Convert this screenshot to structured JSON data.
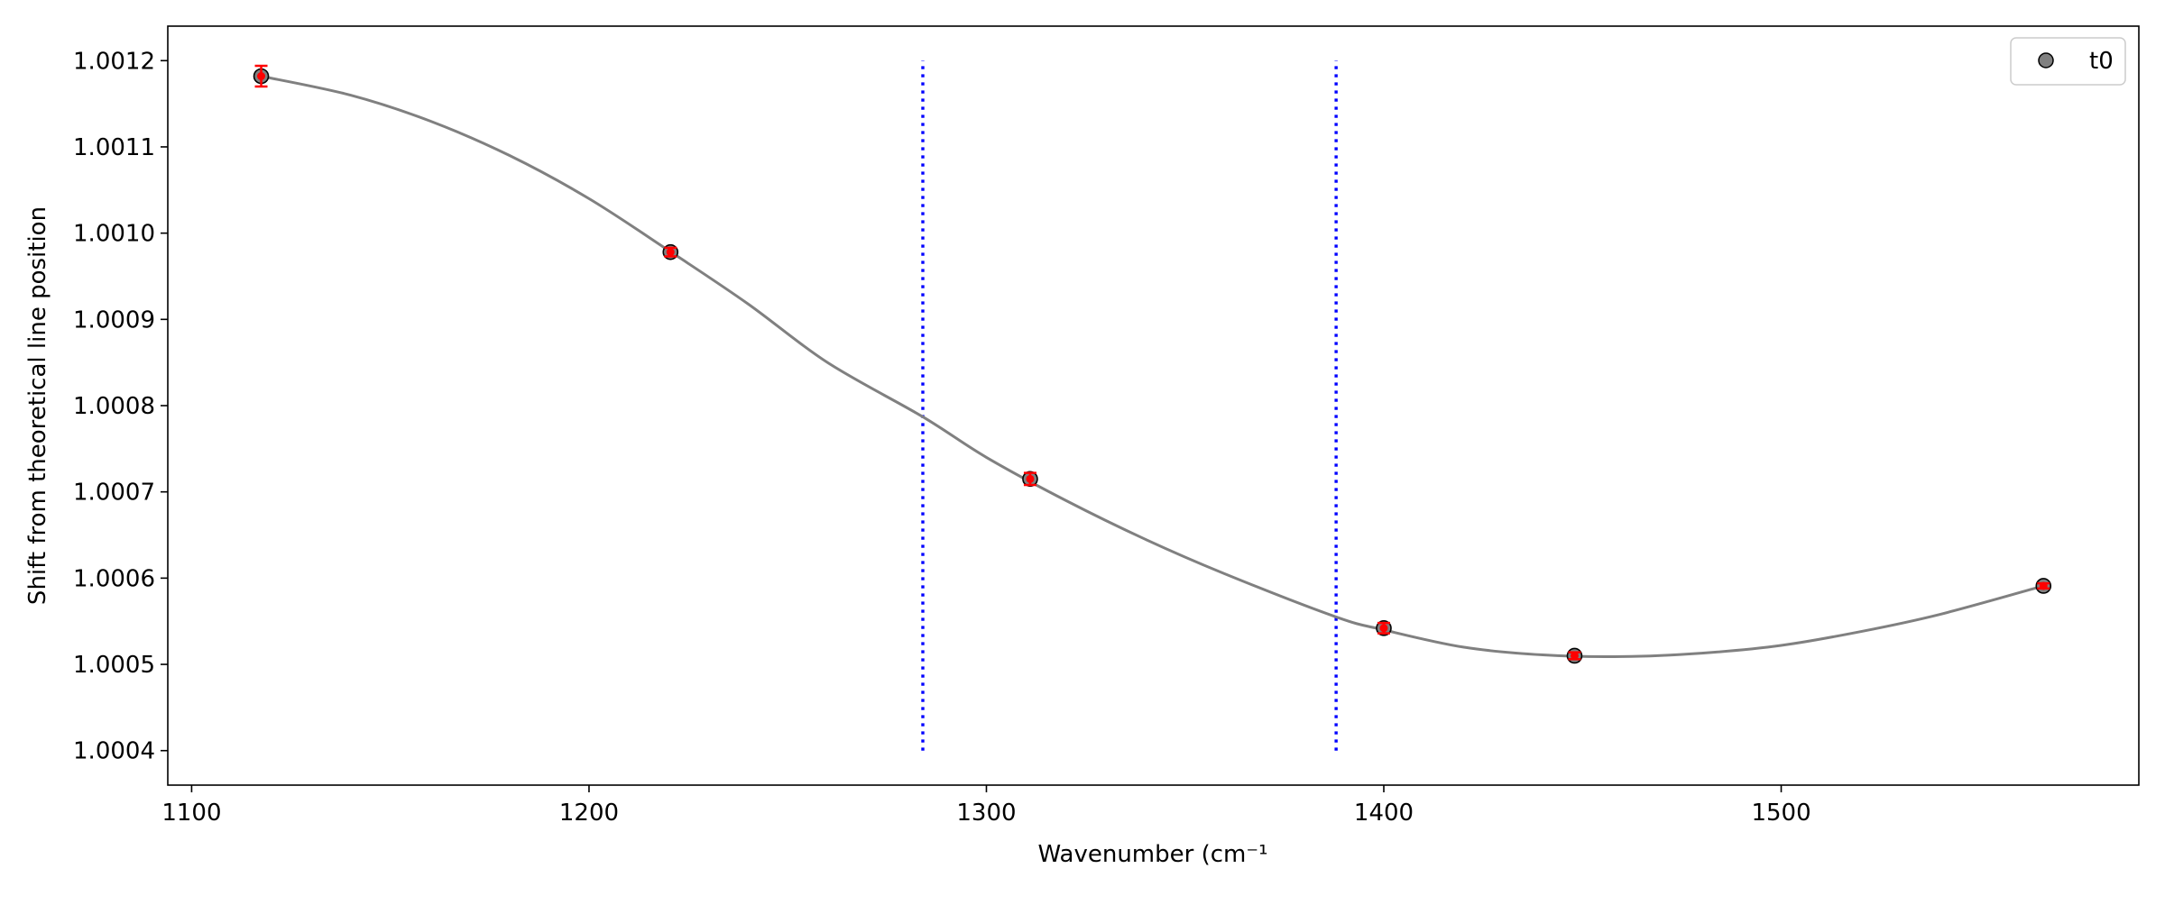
{
  "chart_data": {
    "type": "scatter",
    "title": "",
    "xlabel": "Wavenumber (cm⁻¹",
    "ylabel": "Shift from theoretical line position",
    "xlim": [
      1094,
      1590
    ],
    "ylim": [
      1.00036,
      1.00124
    ],
    "x_ticks": [
      1100,
      1200,
      1300,
      1400,
      1500
    ],
    "x_tick_labels": [
      "1100",
      "1200",
      "1300",
      "1400",
      "1500"
    ],
    "y_ticks": [
      1.0004,
      1.0005,
      1.0006,
      1.0007,
      1.0008,
      1.0009,
      1.001,
      1.0011,
      1.0012
    ],
    "y_tick_labels": [
      "1.0004",
      "1.0005",
      "1.0006",
      "1.0007",
      "1.0008",
      "1.0009",
      "1.0010",
      "1.0011",
      "1.0012"
    ],
    "grid": false,
    "legend": {
      "position": "top-right",
      "entries": [
        "t0"
      ]
    },
    "series": [
      {
        "name": "t0",
        "marker_color": "#808080",
        "error_color": "#ff0000",
        "x": [
          1117.5,
          1220.5,
          1311,
          1400,
          1448,
          1566
        ],
        "y": [
          1.001182,
          1.000978,
          1.000715,
          1.000542,
          1.00051,
          1.000591
        ],
        "yerr": [
          1.2e-05,
          5e-06,
          7e-06,
          6e-06,
          4e-06,
          3e-06
        ]
      }
    ],
    "fit_curve": {
      "color": "#808080",
      "x": [
        1117.5,
        1140,
        1160,
        1180,
        1200,
        1220,
        1240,
        1260,
        1284,
        1300,
        1320,
        1340,
        1360,
        1388,
        1400,
        1420,
        1440,
        1460,
        1480,
        1500,
        1520,
        1540,
        1566
      ],
      "y": [
        1.001182,
        1.00116,
        1.00113,
        1.00109,
        1.00104,
        1.00098,
        1.000918,
        1.00085,
        1.000787,
        1.00074,
        1.00069,
        1.000645,
        1.000605,
        1.000555,
        1.00054,
        1.00052,
        1.000511,
        1.000509,
        1.000513,
        1.000522,
        1.000538,
        1.000558,
        1.000591
      ]
    },
    "vertical_lines": [
      {
        "x": 1284,
        "y_range": [
          1.0004,
          1.0012
        ],
        "color": "#0000ff",
        "style": "dotted"
      },
      {
        "x": 1388,
        "y_range": [
          1.0004,
          1.0012
        ],
        "color": "#0000ff",
        "style": "dotted"
      }
    ]
  }
}
